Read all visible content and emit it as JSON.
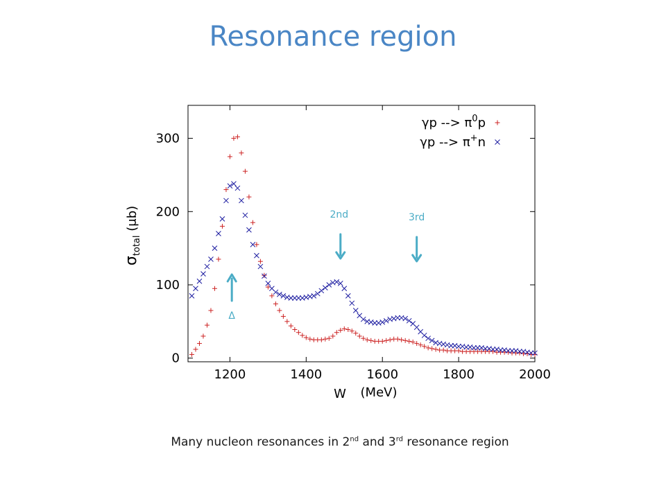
{
  "slide": {
    "title": "Resonance region",
    "caption": {
      "part1": "Many nucleon resonances in 2",
      "sup1": "nd",
      "part2": " and 3",
      "sup2": "rd",
      "part3": " resonance region"
    }
  },
  "chart_data": {
    "type": "scatter",
    "xlabel_parts": [
      "W",
      "(MeV)"
    ],
    "ylabel": "σ",
    "ylabel_sub": "total",
    "ylabel_unit": "(μb)",
    "xlim": [
      1090,
      2000
    ],
    "ylim": [
      -5,
      345
    ],
    "xticks": [
      1200,
      1400,
      1600,
      1800,
      2000
    ],
    "yticks": [
      0,
      100,
      200,
      300
    ],
    "grid": false,
    "legend_position": "top-right",
    "series": [
      {
        "name": "γp --> π0p",
        "legend_main": "γp --> π",
        "legend_sup": "0",
        "legend_end": "p",
        "marker": "plus",
        "color": "#cc2222",
        "x": [
          1100,
          1110,
          1120,
          1130,
          1140,
          1150,
          1160,
          1170,
          1180,
          1190,
          1200,
          1210,
          1220,
          1230,
          1240,
          1250,
          1260,
          1270,
          1280,
          1290,
          1300,
          1310,
          1320,
          1330,
          1340,
          1350,
          1360,
          1370,
          1380,
          1390,
          1400,
          1410,
          1420,
          1430,
          1440,
          1450,
          1460,
          1470,
          1480,
          1490,
          1500,
          1510,
          1520,
          1530,
          1540,
          1550,
          1560,
          1570,
          1580,
          1590,
          1600,
          1610,
          1620,
          1630,
          1640,
          1650,
          1660,
          1670,
          1680,
          1690,
          1700,
          1710,
          1720,
          1730,
          1740,
          1750,
          1760,
          1770,
          1780,
          1790,
          1800,
          1810,
          1820,
          1830,
          1840,
          1850,
          1860,
          1870,
          1880,
          1890,
          1900,
          1910,
          1920,
          1930,
          1940,
          1950,
          1960,
          1970,
          1980,
          1990,
          2000
        ],
        "y": [
          5,
          12,
          20,
          30,
          45,
          65,
          95,
          135,
          180,
          230,
          275,
          300,
          302,
          280,
          255,
          220,
          185,
          155,
          132,
          113,
          97,
          85,
          74,
          65,
          57,
          50,
          44,
          39,
          35,
          31,
          28,
          26,
          25,
          25,
          25,
          26,
          27,
          30,
          35,
          38,
          40,
          39,
          37,
          34,
          30,
          27,
          25,
          24,
          23,
          23,
          23,
          24,
          25,
          26,
          26,
          25,
          24,
          23,
          22,
          20,
          18,
          16,
          14,
          13,
          12,
          11,
          11,
          10,
          10,
          10,
          10,
          9,
          9,
          9,
          9,
          9,
          9,
          9,
          9,
          9,
          8,
          8,
          8,
          8,
          7,
          7,
          7,
          6,
          6,
          5,
          5
        ]
      },
      {
        "name": "γp --> π+n",
        "legend_main": "γp --> π",
        "legend_sup": "+",
        "legend_end": "n",
        "marker": "cross",
        "color": "#1c1ca0",
        "x": [
          1100,
          1110,
          1120,
          1130,
          1140,
          1150,
          1160,
          1170,
          1180,
          1190,
          1200,
          1210,
          1220,
          1230,
          1240,
          1250,
          1260,
          1270,
          1280,
          1290,
          1300,
          1310,
          1320,
          1330,
          1340,
          1350,
          1360,
          1370,
          1380,
          1390,
          1400,
          1410,
          1420,
          1430,
          1440,
          1450,
          1460,
          1470,
          1480,
          1490,
          1500,
          1510,
          1520,
          1530,
          1540,
          1550,
          1560,
          1570,
          1580,
          1590,
          1600,
          1610,
          1620,
          1630,
          1640,
          1650,
          1660,
          1670,
          1680,
          1690,
          1700,
          1710,
          1720,
          1730,
          1740,
          1750,
          1760,
          1770,
          1780,
          1790,
          1800,
          1810,
          1820,
          1830,
          1840,
          1850,
          1860,
          1870,
          1880,
          1890,
          1900,
          1910,
          1920,
          1930,
          1940,
          1950,
          1960,
          1970,
          1980,
          1990,
          2000
        ],
        "y": [
          85,
          95,
          105,
          115,
          125,
          135,
          150,
          170,
          190,
          215,
          235,
          238,
          232,
          215,
          195,
          175,
          155,
          140,
          125,
          112,
          102,
          95,
          90,
          87,
          85,
          83,
          82,
          82,
          82,
          82,
          83,
          84,
          85,
          88,
          92,
          96,
          100,
          103,
          104,
          102,
          95,
          85,
          75,
          65,
          58,
          53,
          50,
          49,
          48,
          48,
          49,
          51,
          53,
          54,
          55,
          55,
          54,
          51,
          47,
          42,
          36,
          31,
          27,
          24,
          21,
          20,
          19,
          18,
          17,
          17,
          16,
          16,
          15,
          15,
          14,
          14,
          14,
          13,
          13,
          12,
          12,
          11,
          11,
          10,
          10,
          10,
          9,
          9,
          8,
          7,
          7
        ]
      }
    ],
    "annotations": [
      {
        "label": "Δ",
        "arrow": "up",
        "x": 1205
      },
      {
        "label": "2nd",
        "arrow": "down",
        "x": 1490
      },
      {
        "label": "3rd",
        "arrow": "down",
        "x": 1690
      }
    ]
  }
}
